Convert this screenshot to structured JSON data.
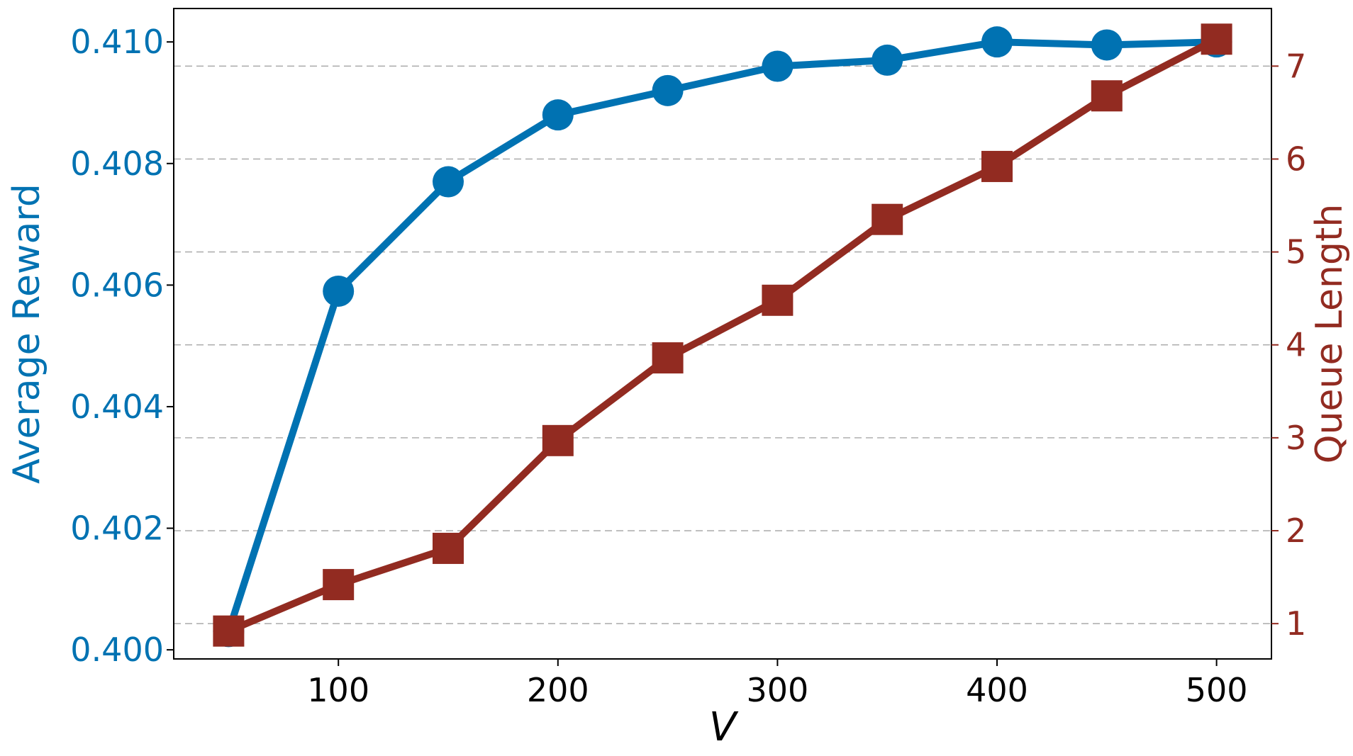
{
  "chart_data": {
    "type": "line",
    "xlabel": "V",
    "x": [
      50,
      100,
      150,
      200,
      250,
      300,
      350,
      400,
      450,
      500
    ],
    "xticks": [
      "100",
      "200",
      "300",
      "400",
      "500"
    ],
    "xlim": [
      25,
      525
    ],
    "grid": "horizontal dashed (right axis)",
    "y_left": {
      "label": "Average Reward",
      "color": "#0072b2",
      "lim": [
        0.39985,
        0.41055
      ],
      "ticks": [
        "0.400",
        "0.402",
        "0.404",
        "0.406",
        "0.408",
        "0.410"
      ]
    },
    "y_right": {
      "label": "Queue Length",
      "color": "#922b21",
      "lim": [
        0.62,
        7.62
      ],
      "ticks": [
        "1",
        "2",
        "3",
        "4",
        "5",
        "6",
        "7"
      ]
    },
    "series": [
      {
        "axis": "left",
        "marker": "circle",
        "color": "#0072b2",
        "values": [
          0.4003,
          0.4059,
          0.4077,
          0.4088,
          0.4092,
          0.4096,
          0.4097,
          0.41,
          0.40995,
          0.41
        ]
      },
      {
        "axis": "right",
        "marker": "square",
        "color": "#922b21",
        "values": [
          0.92,
          1.42,
          1.81,
          2.97,
          3.86,
          4.48,
          5.35,
          5.92,
          6.68,
          7.29
        ]
      }
    ]
  }
}
